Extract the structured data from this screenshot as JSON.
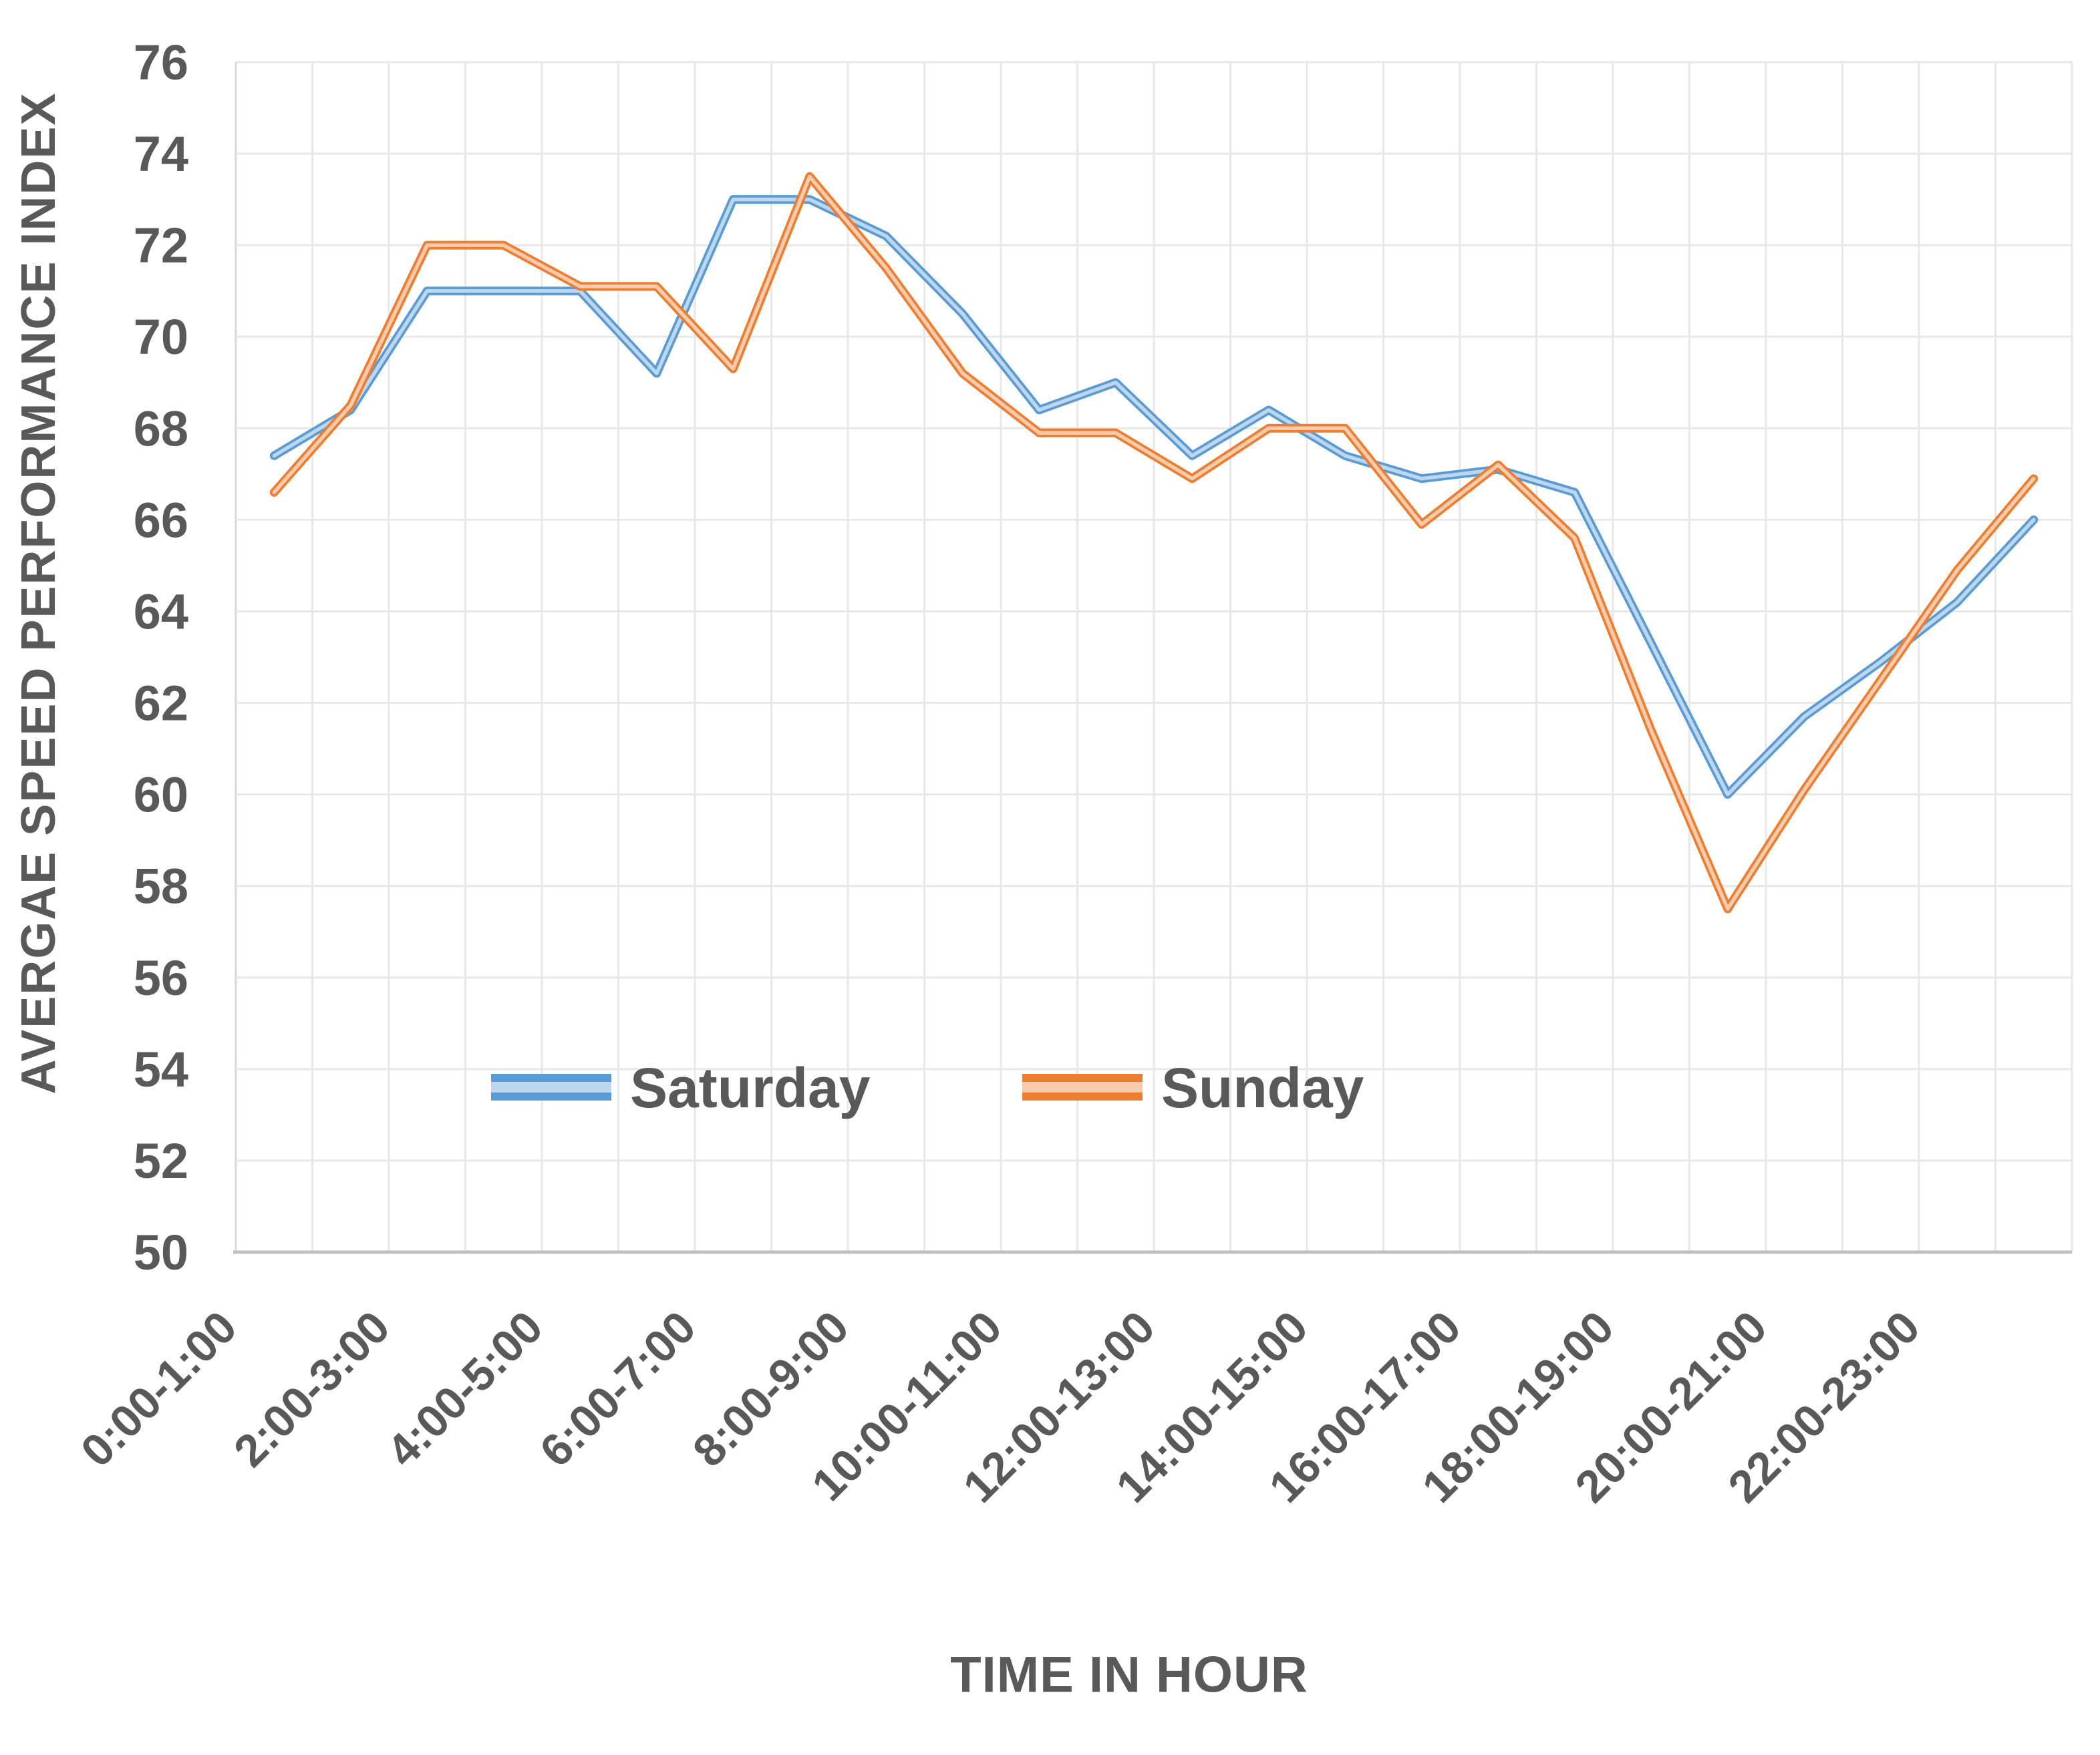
{
  "chart_data": {
    "type": "line",
    "title": "",
    "xlabel": "TIME IN HOUR",
    "ylabel": "AVERGAE SPEED PERFORMANCE INDEX",
    "ylim": [
      50,
      76
    ],
    "ytick_step": 2,
    "ytick_labels": [
      "50",
      "52",
      "54",
      "56",
      "58",
      "60",
      "62",
      "64",
      "66",
      "68",
      "70",
      "72",
      "74",
      "76"
    ],
    "n_categories": 24,
    "x_tick_labels": [
      "0:00-1:00",
      "2:00-3:00",
      "4:00-5:00",
      "6:00-7:00",
      "8:00-9:00",
      "10:00-11:00",
      "12:00-13:00",
      "14:00-15:00",
      "16:00-17:00",
      "18:00-19:00",
      "20:00-21:00",
      "22:00-23:00"
    ],
    "x_tick_category_indexes": [
      0,
      2,
      4,
      6,
      8,
      10,
      12,
      14,
      16,
      18,
      20,
      22
    ],
    "grid": true,
    "legend_position": "inside-bottom-left",
    "series": [
      {
        "name": "Saturday",
        "color": "#5B9BD5",
        "inner_color": "#BDD7EE",
        "values": [
          67.4,
          68.4,
          71.0,
          71.0,
          71.0,
          69.2,
          73.0,
          73.0,
          72.2,
          70.5,
          68.4,
          69.0,
          67.4,
          68.4,
          67.4,
          66.9,
          67.1,
          66.6,
          63.3,
          60.0,
          61.7,
          62.9,
          64.2,
          66.0
        ]
      },
      {
        "name": "Sunday",
        "color": "#ED7D31",
        "inner_color": "#F8CBAD",
        "values": [
          66.6,
          68.5,
          72.0,
          72.0,
          71.1,
          71.1,
          69.3,
          73.5,
          71.5,
          69.2,
          67.9,
          67.9,
          66.9,
          68.0,
          68.0,
          65.9,
          67.2,
          65.6,
          61.4,
          57.5,
          60.1,
          62.5,
          64.9,
          66.9
        ]
      }
    ],
    "style": {
      "text_color": "#595959",
      "gridline_color": "#E8E8E8",
      "y_axis_line_color": "#D9D9D9",
      "x_axis_line_color": "#BFBFBF",
      "background": "#FFFFFF"
    }
  }
}
